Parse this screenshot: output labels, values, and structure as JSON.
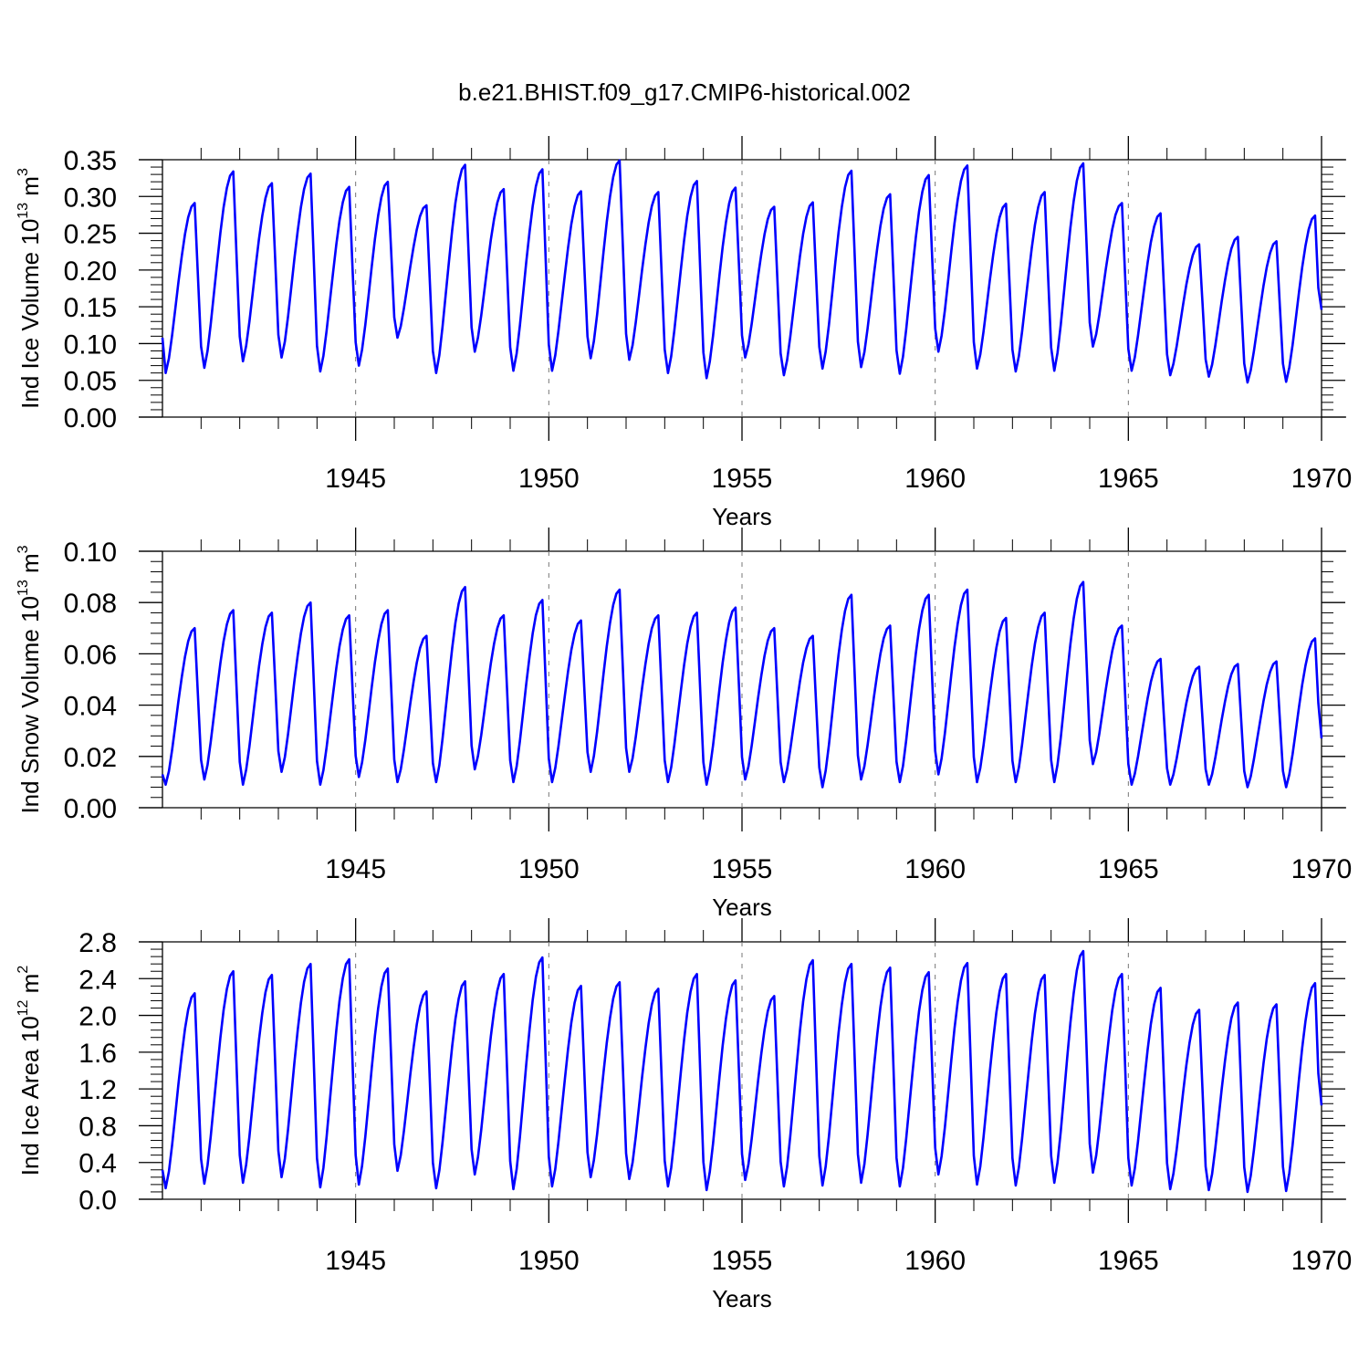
{
  "figure": {
    "title": "b.e21.BHIST.f09_g17.CMIP6-historical.002"
  },
  "chart_data": [
    {
      "type": "line",
      "ylabel_parts": [
        "Ind Ice Volume 10",
        "13",
        " m",
        "3"
      ],
      "xlabel": "Years",
      "xlim": [
        1940.0,
        1970.0
      ],
      "ylim": [
        0.0,
        0.35
      ],
      "xticks": [
        1945,
        1950,
        1955,
        1960,
        1965,
        1970
      ],
      "xtick_labels": [
        "1945",
        "1950",
        "1955",
        "1960",
        "1965",
        "1970"
      ],
      "yticks": [
        0.0,
        0.05,
        0.1,
        0.15,
        0.2,
        0.25,
        0.3,
        0.35
      ],
      "ytick_labels": [
        "0.00",
        "0.05",
        "0.10",
        "0.15",
        "0.20",
        "0.25",
        "0.30",
        "0.35"
      ],
      "line_color": "#0000ff",
      "series": [
        {
          "name": "Ind Ice Volume",
          "annual_max": [
            0.291,
            0.334,
            0.318,
            0.331,
            0.313,
            0.32,
            0.288,
            0.343,
            0.31,
            0.337,
            0.307,
            0.349,
            0.306,
            0.321,
            0.312,
            0.286,
            0.292,
            0.335,
            0.303,
            0.329,
            0.342,
            0.29,
            0.306,
            0.345,
            0.291,
            0.277,
            0.235,
            0.245,
            0.239,
            0.274
          ],
          "annual_min": [
            0.06,
            0.067,
            0.076,
            0.081,
            0.062,
            0.07,
            0.108,
            0.06,
            0.089,
            0.063,
            0.063,
            0.08,
            0.078,
            0.06,
            0.053,
            0.081,
            0.057,
            0.066,
            0.068,
            0.059,
            0.089,
            0.066,
            0.062,
            0.063,
            0.096,
            0.063,
            0.057,
            0.055,
            0.047,
            0.048
          ],
          "start_value": 0.108,
          "end_value": 0.146
        }
      ]
    },
    {
      "type": "line",
      "ylabel_parts": [
        "Ind Snow Volume 10",
        "13",
        " m",
        "3"
      ],
      "xlabel": "Years",
      "xlim": [
        1940.0,
        1970.0
      ],
      "ylim": [
        0.0,
        0.1
      ],
      "xticks": [
        1945,
        1950,
        1955,
        1960,
        1965,
        1970
      ],
      "xtick_labels": [
        "1945",
        "1950",
        "1955",
        "1960",
        "1965",
        "1970"
      ],
      "yticks": [
        0.0,
        0.02,
        0.04,
        0.06,
        0.08,
        0.1
      ],
      "ytick_labels": [
        "0.00",
        "0.02",
        "0.04",
        "0.06",
        "0.08",
        "0.10"
      ],
      "line_color": "#0000ff",
      "series": [
        {
          "name": "Ind Snow Volume",
          "annual_max": [
            0.07,
            0.077,
            0.076,
            0.08,
            0.075,
            0.077,
            0.067,
            0.086,
            0.075,
            0.081,
            0.073,
            0.085,
            0.075,
            0.076,
            0.078,
            0.07,
            0.067,
            0.083,
            0.071,
            0.083,
            0.085,
            0.074,
            0.076,
            0.088,
            0.071,
            0.058,
            0.055,
            0.056,
            0.057,
            0.066
          ],
          "annual_min": [
            0.009,
            0.011,
            0.009,
            0.014,
            0.009,
            0.012,
            0.01,
            0.01,
            0.015,
            0.01,
            0.01,
            0.014,
            0.014,
            0.01,
            0.009,
            0.011,
            0.01,
            0.008,
            0.011,
            0.01,
            0.013,
            0.01,
            0.01,
            0.01,
            0.017,
            0.009,
            0.009,
            0.009,
            0.008,
            0.008
          ],
          "start_value": 0.013,
          "end_value": 0.027
        }
      ]
    },
    {
      "type": "line",
      "ylabel_parts": [
        "Ind Ice Area 10",
        "12",
        " m",
        "2"
      ],
      "xlabel": "Years",
      "xlim": [
        1940.0,
        1970.0
      ],
      "ylim": [
        0.0,
        2.8
      ],
      "xticks": [
        1945,
        1950,
        1955,
        1960,
        1965,
        1970
      ],
      "xtick_labels": [
        "1945",
        "1950",
        "1955",
        "1960",
        "1965",
        "1970"
      ],
      "yticks": [
        0.0,
        0.4,
        0.8,
        1.2,
        1.6,
        2.0,
        2.4,
        2.8
      ],
      "ytick_labels": [
        "0.0",
        "0.4",
        "0.8",
        "1.2",
        "1.6",
        "2.0",
        "2.4",
        "2.8"
      ],
      "line_color": "#0000ff",
      "series": [
        {
          "name": "Ind Ice Area",
          "annual_max": [
            2.24,
            2.48,
            2.44,
            2.56,
            2.61,
            2.51,
            2.26,
            2.37,
            2.45,
            2.63,
            2.32,
            2.36,
            2.29,
            2.45,
            2.38,
            2.21,
            2.6,
            2.56,
            2.52,
            2.47,
            2.57,
            2.45,
            2.44,
            2.7,
            2.45,
            2.3,
            2.06,
            2.14,
            2.12,
            2.35
          ],
          "annual_min": [
            0.12,
            0.17,
            0.18,
            0.24,
            0.13,
            0.16,
            0.31,
            0.12,
            0.27,
            0.11,
            0.14,
            0.24,
            0.22,
            0.14,
            0.1,
            0.21,
            0.14,
            0.15,
            0.18,
            0.14,
            0.27,
            0.16,
            0.15,
            0.18,
            0.29,
            0.15,
            0.11,
            0.1,
            0.08,
            0.09
          ],
          "start_value": 0.32,
          "end_value": 1.02
        }
      ]
    }
  ]
}
